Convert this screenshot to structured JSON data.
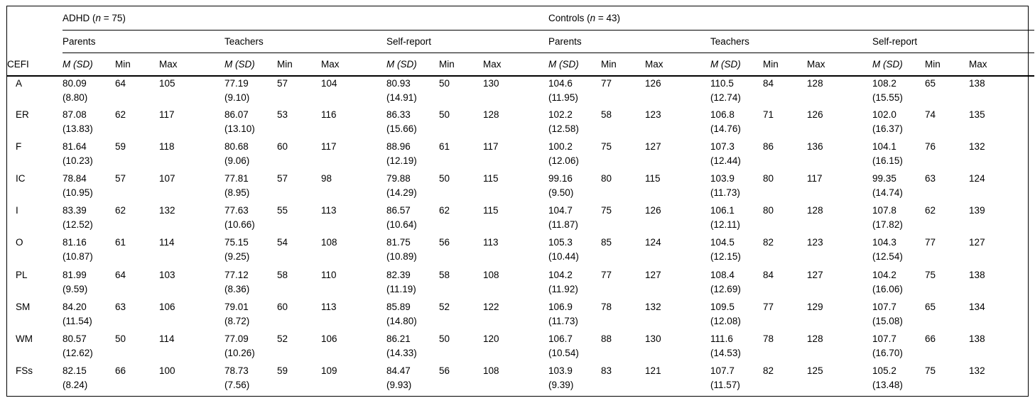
{
  "table": {
    "corner_label": "CEFI",
    "col_headers": {
      "msd": "M (SD)",
      "min": "Min",
      "max": "Max"
    },
    "groups": [
      {
        "label_pre": "ADHD (",
        "label_n": "n",
        "label_post": " = 75)",
        "raters": [
          "Parents",
          "Teachers",
          "Self-report"
        ]
      },
      {
        "label_pre": "Controls (",
        "label_n": "n",
        "label_post": " = 43)",
        "raters": [
          "Parents",
          "Teachers",
          "Self-report"
        ]
      }
    ],
    "rows": [
      {
        "scale": "A",
        "cells": [
          [
            "80.09",
            "(8.80)",
            "64",
            "105"
          ],
          [
            "77.19",
            "(9.10)",
            "57",
            "104"
          ],
          [
            "80.93",
            "(14.91)",
            "50",
            "130"
          ],
          [
            "104.6",
            "(11.95)",
            "77",
            "126"
          ],
          [
            "110.5",
            "(12.74)",
            "84",
            "128"
          ],
          [
            "108.2",
            "(15.55)",
            "65",
            "138"
          ]
        ]
      },
      {
        "scale": "ER",
        "cells": [
          [
            "87.08",
            "(13.83)",
            "62",
            "117"
          ],
          [
            "86.07",
            "(13.10)",
            "53",
            "116"
          ],
          [
            "86.33",
            "(15.66)",
            "50",
            "128"
          ],
          [
            "102.2",
            "(12.58)",
            "58",
            "123"
          ],
          [
            "106.8",
            "(14.76)",
            "71",
            "126"
          ],
          [
            "102.0",
            "(16.37)",
            "74",
            "135"
          ]
        ]
      },
      {
        "scale": "F",
        "cells": [
          [
            "81.64",
            "(10.23)",
            "59",
            "118"
          ],
          [
            "80.68",
            "(9.06)",
            "60",
            "117"
          ],
          [
            "88.96",
            "(12.19)",
            "61",
            "117"
          ],
          [
            "100.2",
            "(12.06)",
            "75",
            "127"
          ],
          [
            "107.3",
            "(12.44)",
            "86",
            "136"
          ],
          [
            "104.1",
            "(16.15)",
            "76",
            "132"
          ]
        ]
      },
      {
        "scale": "IC",
        "cells": [
          [
            "78.84",
            "(10.95)",
            "57",
            "107"
          ],
          [
            "77.81",
            "(8.95)",
            "57",
            "98"
          ],
          [
            "79.88",
            "(14.29)",
            "50",
            "115"
          ],
          [
            "99.16",
            "(9.50)",
            "80",
            "115"
          ],
          [
            "103.9",
            "(11.73)",
            "80",
            "117"
          ],
          [
            "99.35",
            "(14.74)",
            "63",
            "124"
          ]
        ]
      },
      {
        "scale": "I",
        "cells": [
          [
            "83.39",
            "(12.52)",
            "62",
            "132"
          ],
          [
            "77.63",
            "(10.66)",
            "55",
            "113"
          ],
          [
            "86.57",
            "(10.64)",
            "62",
            "115"
          ],
          [
            "104.7",
            "(11.87)",
            "75",
            "126"
          ],
          [
            "106.1",
            "(12.11)",
            "80",
            "128"
          ],
          [
            "107.8",
            "(17.82)",
            "62",
            "139"
          ]
        ]
      },
      {
        "scale": "O",
        "cells": [
          [
            "81.16",
            "(10.87)",
            "61",
            "114"
          ],
          [
            "75.15",
            "(9.25)",
            "54",
            "108"
          ],
          [
            "81.75",
            "(10.89)",
            "56",
            "113"
          ],
          [
            "105.3",
            "(10.44)",
            "85",
            "124"
          ],
          [
            "104.5",
            "(12.15)",
            "82",
            "123"
          ],
          [
            "104.3",
            "(12.54)",
            "77",
            "127"
          ]
        ]
      },
      {
        "scale": "PL",
        "cells": [
          [
            "81.99",
            "(9.59)",
            "64",
            "103"
          ],
          [
            "77.12",
            "(8.36)",
            "58",
            "110"
          ],
          [
            "82.39",
            "(11.19)",
            "58",
            "108"
          ],
          [
            "104.2",
            "(11.92)",
            "77",
            "127"
          ],
          [
            "108.4",
            "(12.69)",
            "84",
            "127"
          ],
          [
            "104.2",
            "(16.06)",
            "75",
            "138"
          ]
        ]
      },
      {
        "scale": "SM",
        "cells": [
          [
            "84.20",
            "(11.54)",
            "63",
            "106"
          ],
          [
            "79.01",
            "(8.72)",
            "60",
            "113"
          ],
          [
            "85.89",
            "(14.80)",
            "52",
            "122"
          ],
          [
            "106.9",
            "(11.73)",
            "78",
            "132"
          ],
          [
            "109.5",
            "(12.08)",
            "77",
            "129"
          ],
          [
            "107.7",
            "(15.08)",
            "65",
            "134"
          ]
        ]
      },
      {
        "scale": "WM",
        "cells": [
          [
            "80.57",
            "(12.62)",
            "50",
            "114"
          ],
          [
            "77.09",
            "(10.26)",
            "52",
            "106"
          ],
          [
            "86.21",
            "(14.33)",
            "50",
            "120"
          ],
          [
            "106.7",
            "(10.54)",
            "88",
            "130"
          ],
          [
            "111.6",
            "(14.53)",
            "78",
            "128"
          ],
          [
            "107.7",
            "(16.70)",
            "66",
            "138"
          ]
        ]
      },
      {
        "scale": "FSs",
        "cells": [
          [
            "82.15",
            "(8.24)",
            "66",
            "100"
          ],
          [
            "78.73",
            "(7.56)",
            "59",
            "109"
          ],
          [
            "84.47",
            "(9.93)",
            "56",
            "108"
          ],
          [
            "103.9",
            "(9.39)",
            "83",
            "121"
          ],
          [
            "107.7",
            "(11.57)",
            "82",
            "125"
          ],
          [
            "105.2",
            "(13.48)",
            "75",
            "132"
          ]
        ]
      }
    ]
  }
}
